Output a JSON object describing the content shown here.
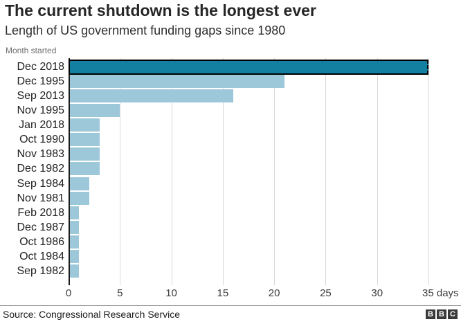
{
  "header": {
    "title": "The current shutdown is the longest ever",
    "subtitle": "Length of US government funding gaps since 1980"
  },
  "chart_data": {
    "type": "bar",
    "orientation": "horizontal",
    "axis_note": "Month started",
    "categories": [
      "Dec 2018",
      "Dec 1995",
      "Sep 2013",
      "Nov 1995",
      "Jan 2018",
      "Oct 1990",
      "Nov 1983",
      "Dec 1982",
      "Sep 1984",
      "Nov 1981",
      "Feb 2018",
      "Dec 1987",
      "Oct 1986",
      "Oct 1984",
      "Sep 1982"
    ],
    "values": [
      35,
      21,
      16,
      5,
      3,
      3,
      3,
      3,
      2,
      2,
      1,
      1,
      1,
      1,
      1
    ],
    "unit": "days",
    "xlim": [
      0,
      35
    ],
    "x_ticks": [
      {
        "value": 0,
        "label": "0"
      },
      {
        "value": 5,
        "label": "5"
      },
      {
        "value": 10,
        "label": "10"
      },
      {
        "value": 15,
        "label": "15"
      },
      {
        "value": 20,
        "label": "20"
      },
      {
        "value": 25,
        "label": "25"
      },
      {
        "value": 30,
        "label": "30"
      },
      {
        "value": 35,
        "label": "35 days"
      }
    ],
    "grid": true,
    "legend": "none",
    "highlight_index": 0,
    "colors": {
      "highlight_bar": "#1380A1",
      "bar": "#9CC8DA",
      "highlight_outline": "#000000"
    }
  },
  "footer": {
    "source": "Source: Congressional Research Service",
    "logo_letters": [
      "B",
      "B",
      "C"
    ]
  }
}
